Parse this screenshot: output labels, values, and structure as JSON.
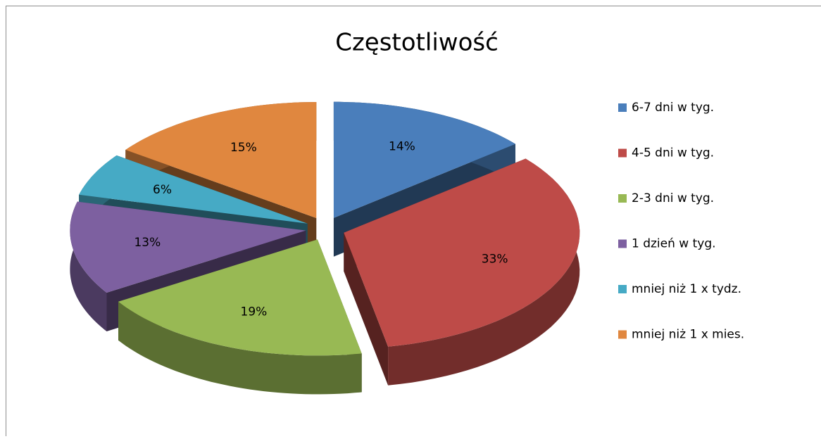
{
  "chart_data": {
    "type": "pie",
    "title": "Częstotliwość",
    "categories": [
      "6-7 dni w tyg.",
      "4-5 dni w tyg.",
      "2-3 dni w tyg.",
      "1 dzień w tyg.",
      "mniej niż 1 x tydz.",
      "mniej niż 1 x mies."
    ],
    "values": [
      14,
      33,
      19,
      13,
      6,
      15
    ],
    "value_labels": [
      "14%",
      "33%",
      "19%",
      "13%",
      "6%",
      "15%"
    ],
    "colors": [
      "#4a7ebb",
      "#be4b48",
      "#98b954",
      "#7d60a0",
      "#46aac5",
      "#e0873f"
    ],
    "legend": "right"
  }
}
